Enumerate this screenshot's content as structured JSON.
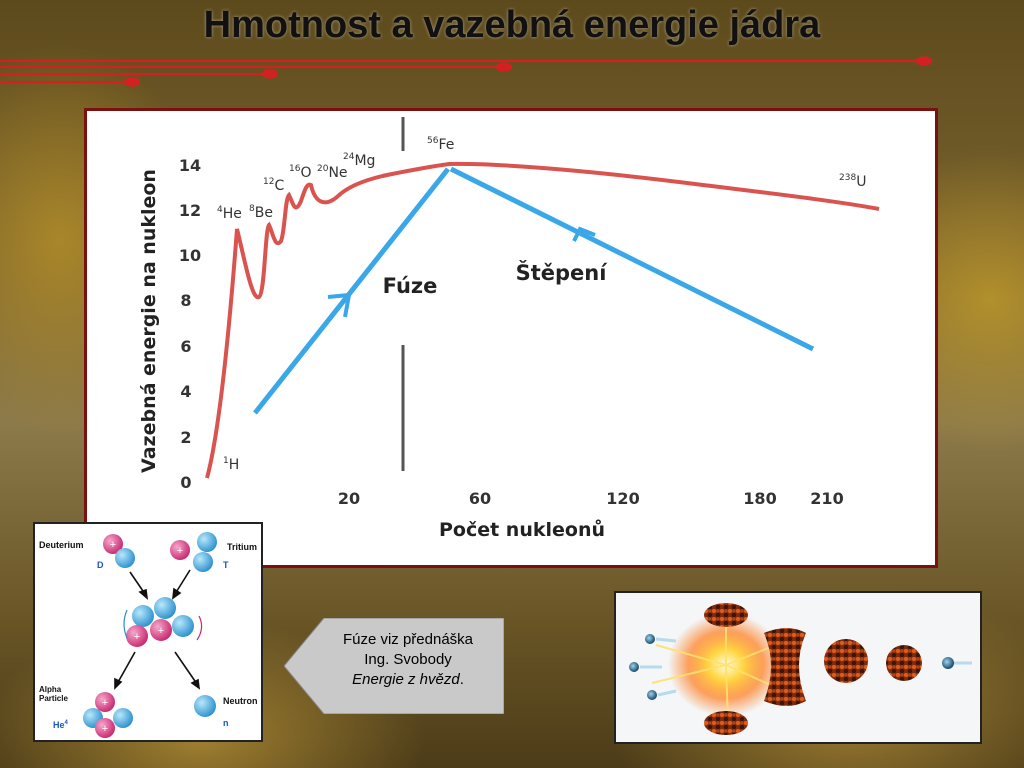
{
  "slide": {
    "title": "Hmotnost a vazebná energie jádra"
  },
  "chart_data": {
    "type": "line",
    "ylabel": "Vazebná energie na nukleon",
    "xlabel": "Počet nukleonů",
    "y_ticks": [
      "0",
      "2",
      "4",
      "6",
      "8",
      "10",
      "12",
      "14"
    ],
    "x_ticks": [
      "20",
      "60",
      "120",
      "180",
      "210"
    ],
    "ylim": [
      0,
      14
    ],
    "annotations": {
      "fusion": "Fúze",
      "fission": "Štěpení"
    },
    "nuclide_labels": [
      {
        "mass": "1",
        "symbol": "H"
      },
      {
        "mass": "4",
        "symbol": "He"
      },
      {
        "mass": "8",
        "symbol": "Be"
      },
      {
        "mass": "12",
        "symbol": "C"
      },
      {
        "mass": "16",
        "symbol": "O"
      },
      {
        "mass": "20",
        "symbol": "Ne"
      },
      {
        "mass": "24",
        "symbol": "Mg"
      },
      {
        "mass": "56",
        "symbol": "Fe"
      },
      {
        "mass": "238",
        "symbol": "U"
      }
    ],
    "series_color": "#d9534f",
    "arrow_color": "#3aa7e8"
  },
  "fusion_diagram": {
    "deuterium": "Deuterium",
    "d": "D",
    "tritium": "Tritium",
    "t": "T",
    "alpha_1": "Alpha",
    "alpha_2": "Particle",
    "he": "He",
    "he_sup": "4",
    "neutron": "Neutron",
    "n": "n",
    "plus": "+"
  },
  "callout": {
    "line1": "Fúze viz přednáška",
    "line2": "Ing. Svobody",
    "line3_em": "Energie z hvězd",
    "line3_end": "."
  }
}
